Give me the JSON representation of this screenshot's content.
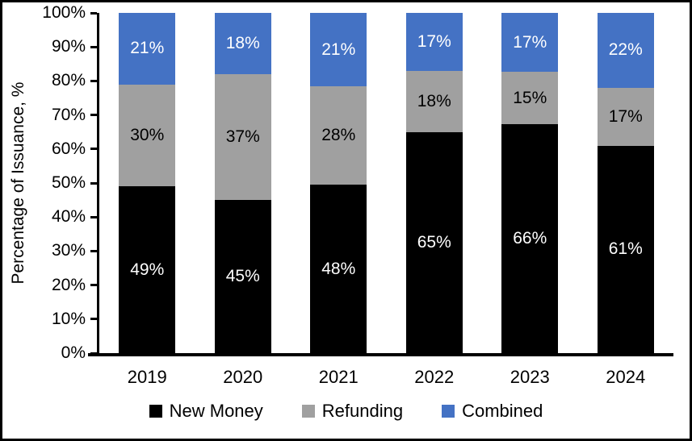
{
  "chart_data": {
    "type": "bar",
    "stacked": true,
    "title": "",
    "xlabel": "",
    "ylabel": "Percentage of Issuance, %",
    "categories": [
      "2019",
      "2020",
      "2021",
      "2022",
      "2023",
      "2024"
    ],
    "series": [
      {
        "name": "New Money",
        "color": "#000000",
        "label_color": "#ffffff",
        "values": [
          49,
          45,
          48,
          65,
          66,
          61
        ],
        "labels": [
          "49%",
          "45%",
          "48%",
          "65%",
          "66%",
          "61%"
        ]
      },
      {
        "name": "Refunding",
        "color": "#A0A0A0",
        "label_color": "#000000",
        "values": [
          30,
          37,
          28,
          18,
          15,
          17
        ],
        "labels": [
          "30%",
          "37%",
          "28%",
          "18%",
          "15%",
          "17%"
        ]
      },
      {
        "name": "Combined",
        "color": "#4472C4",
        "label_color": "#ffffff",
        "values": [
          21,
          18,
          21,
          17,
          17,
          22
        ],
        "labels": [
          "21%",
          "18%",
          "21%",
          "17%",
          "17%",
          "22%"
        ]
      }
    ],
    "ylim": [
      0,
      100
    ],
    "ytick_step": 10,
    "ytick_labels": [
      "0%",
      "10%",
      "20%",
      "30%",
      "40%",
      "50%",
      "60%",
      "70%",
      "80%",
      "90%",
      "100%"
    ],
    "grid": false,
    "legend_position": "bottom",
    "axis_color": "#000000",
    "background_color": "#ffffff"
  }
}
